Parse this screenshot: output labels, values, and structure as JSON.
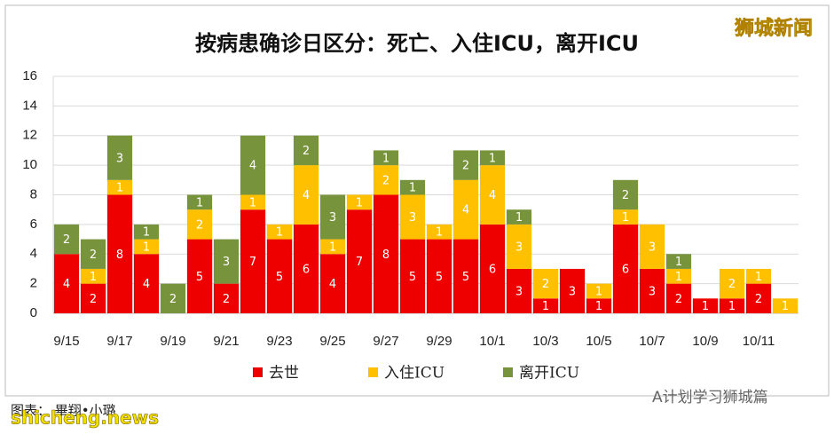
{
  "chart_data": {
    "type": "stacked_bar",
    "title": "按病患确诊日区分：死亡、入住ICU，离开ICU",
    "categories": [
      "9/15",
      null,
      "9/17",
      null,
      "9/19",
      null,
      "9/21",
      null,
      "9/23",
      null,
      "9/25",
      null,
      "9/27",
      null,
      "9/29",
      null,
      "10/1",
      null,
      "10/3",
      null,
      "10/5",
      null,
      "10/7",
      null,
      "10/9",
      null,
      "10/11",
      null
    ],
    "series": [
      {
        "name": "去世",
        "color": "#ee0000",
        "values": [
          4,
          2,
          8,
          4,
          0,
          5,
          2,
          7,
          5,
          6,
          4,
          7,
          8,
          5,
          5,
          5,
          6,
          3,
          1,
          3,
          1,
          6,
          3,
          2,
          1,
          1,
          2,
          0
        ]
      },
      {
        "name": "入住ICU",
        "color": "#ffc000",
        "values": [
          0,
          1,
          1,
          1,
          0,
          2,
          0,
          1,
          1,
          4,
          1,
          1,
          2,
          3,
          1,
          4,
          4,
          3,
          2,
          0,
          1,
          1,
          3,
          1,
          0,
          2,
          1,
          1
        ]
      },
      {
        "name": "离开ICU",
        "color": "#77933c",
        "values": [
          2,
          2,
          3,
          1,
          2,
          1,
          3,
          4,
          0,
          2,
          3,
          0,
          1,
          1,
          0,
          2,
          1,
          1,
          0,
          0,
          0,
          2,
          0,
          1,
          0,
          0,
          0,
          0
        ]
      }
    ],
    "ylim": [
      0,
      16
    ],
    "yticks": [
      0,
      2,
      4,
      6,
      8,
      10,
      12,
      14,
      16
    ],
    "grid": true,
    "legend": "bottom"
  },
  "watermark": "狮城新闻",
  "credit": "图表：  畢翔•小璐",
  "site": "shicheng.news",
  "wechat": "A计划学习狮城篇"
}
